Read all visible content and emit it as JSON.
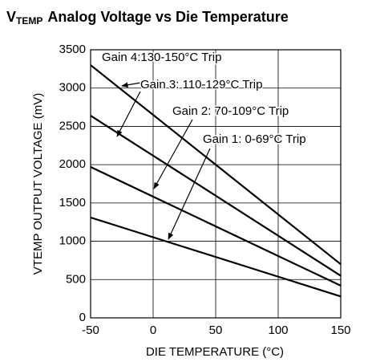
{
  "chart_data": {
    "type": "line",
    "title": {
      "main": "V",
      "sub": "TEMP",
      "rest": "Analog Voltage vs Die Temperature"
    },
    "x_label": "DIE TEMPERATURE (°C)",
    "y_label": "VTEMP OUTPUT VOLTAGE (mV)",
    "x": [
      -50,
      150
    ],
    "series": [
      {
        "color": "#000000",
        "values": [
          1310,
          280
        ]
      },
      {
        "color": "#000000",
        "values": [
          1970,
          420
        ]
      },
      {
        "color": "#000000",
        "values": [
          2640,
          550
        ]
      },
      {
        "color": "#000000",
        "values": [
          3300,
          700
        ]
      }
    ],
    "annotations": [
      "Gain 4:130-150°C Trip",
      "Gain 3: 110-129°C Trip",
      "Gain 2: 70-109°C Trip",
      "Gain 1: 0-69°C Trip"
    ],
    "xlim": [
      -50,
      150
    ],
    "xticks": [
      -50,
      0,
      50,
      100,
      150
    ],
    "ylim": [
      0,
      3500
    ],
    "yticks": [
      0,
      500,
      1000,
      1500,
      2000,
      2500,
      3000,
      3500
    ],
    "grid": true
  }
}
